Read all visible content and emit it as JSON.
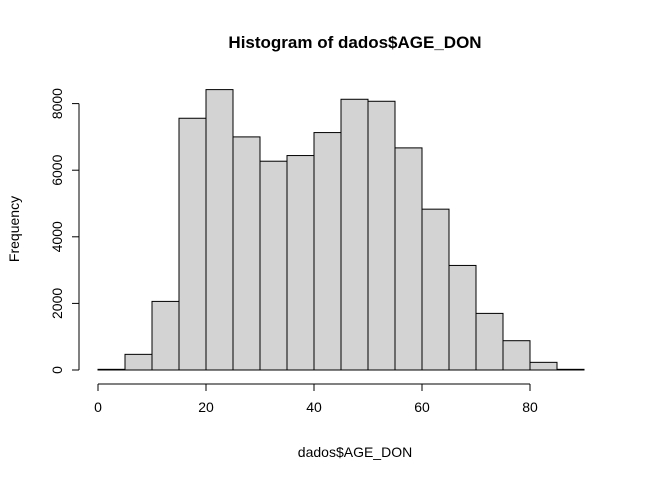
{
  "chart_data": {
    "type": "bar",
    "title": "Histogram of dados$AGE_DON",
    "xlabel": "dados$AGE_DON",
    "ylabel": "Frequency",
    "bin_width": 5,
    "bin_starts": [
      0,
      5,
      10,
      15,
      20,
      25,
      30,
      35,
      40,
      45,
      50,
      55,
      60,
      65,
      70,
      75,
      80,
      85
    ],
    "values": [
      20,
      470,
      2060,
      7560,
      8420,
      7000,
      6270,
      6440,
      7130,
      8130,
      8070,
      6670,
      4830,
      3140,
      1700,
      880,
      230,
      20
    ],
    "xlim": [
      0,
      95
    ],
    "ylim": [
      0,
      8500
    ],
    "x_ticks": [
      0,
      20,
      40,
      60,
      80
    ],
    "x_tick_labels": [
      "0",
      "20",
      "40",
      "60",
      "80"
    ],
    "y_ticks": [
      0,
      2000,
      4000,
      6000,
      8000
    ],
    "y_tick_labels": [
      "0",
      "2000",
      "4000",
      "6000",
      "8000"
    ],
    "bar_color": "#d3d3d3",
    "grid": false,
    "legend": "none"
  }
}
